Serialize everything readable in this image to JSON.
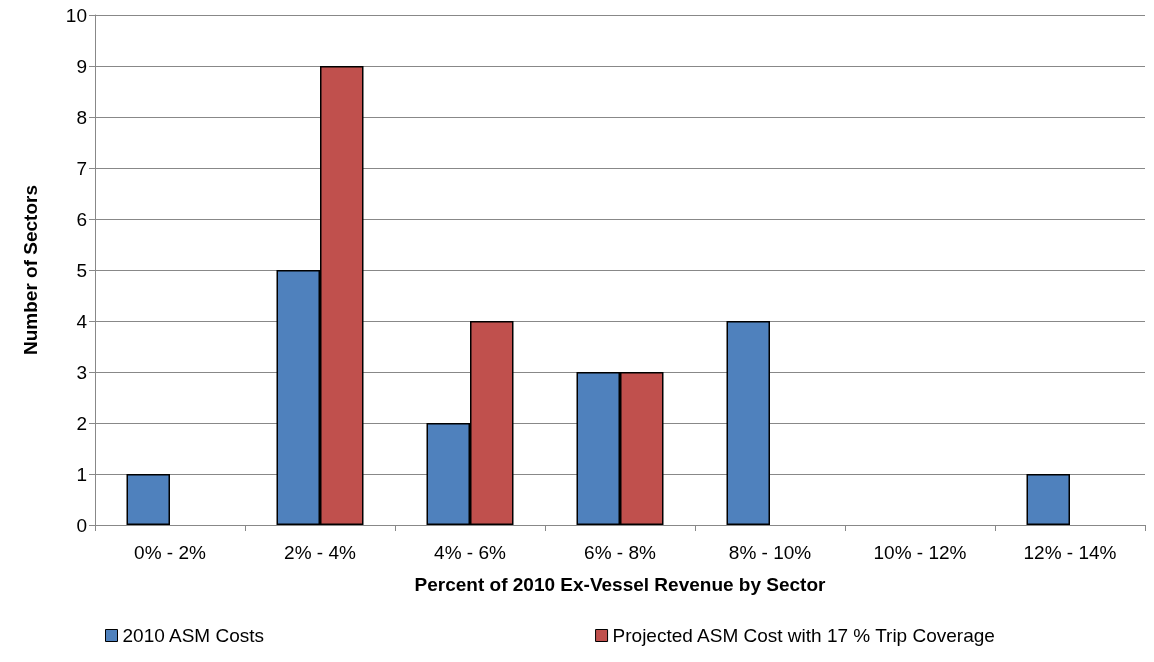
{
  "chart_data": {
    "type": "bar",
    "xlabel": "Percent of 2010 Ex-Vessel Revenue by Sector",
    "ylabel": "Number of Sectors",
    "categories": [
      "0% - 2%",
      "2% - 4%",
      "4% - 6%",
      "6% - 8%",
      "8% - 10%",
      "10% - 12%",
      "12% - 14%"
    ],
    "series": [
      {
        "name": "2010 ASM Costs",
        "color": "#4f81bd",
        "values": [
          1,
          5,
          2,
          3,
          4,
          0,
          1
        ]
      },
      {
        "name": "Projected ASM Cost with 17 % Trip Coverage",
        "color": "#c0504d",
        "values": [
          0,
          9,
          4,
          3,
          0,
          0,
          0
        ]
      }
    ],
    "ylim": [
      0,
      10
    ],
    "yticks": [
      0,
      1,
      2,
      3,
      4,
      5,
      6,
      7,
      8,
      9,
      10
    ],
    "grid": "y",
    "legend": "bottom"
  }
}
